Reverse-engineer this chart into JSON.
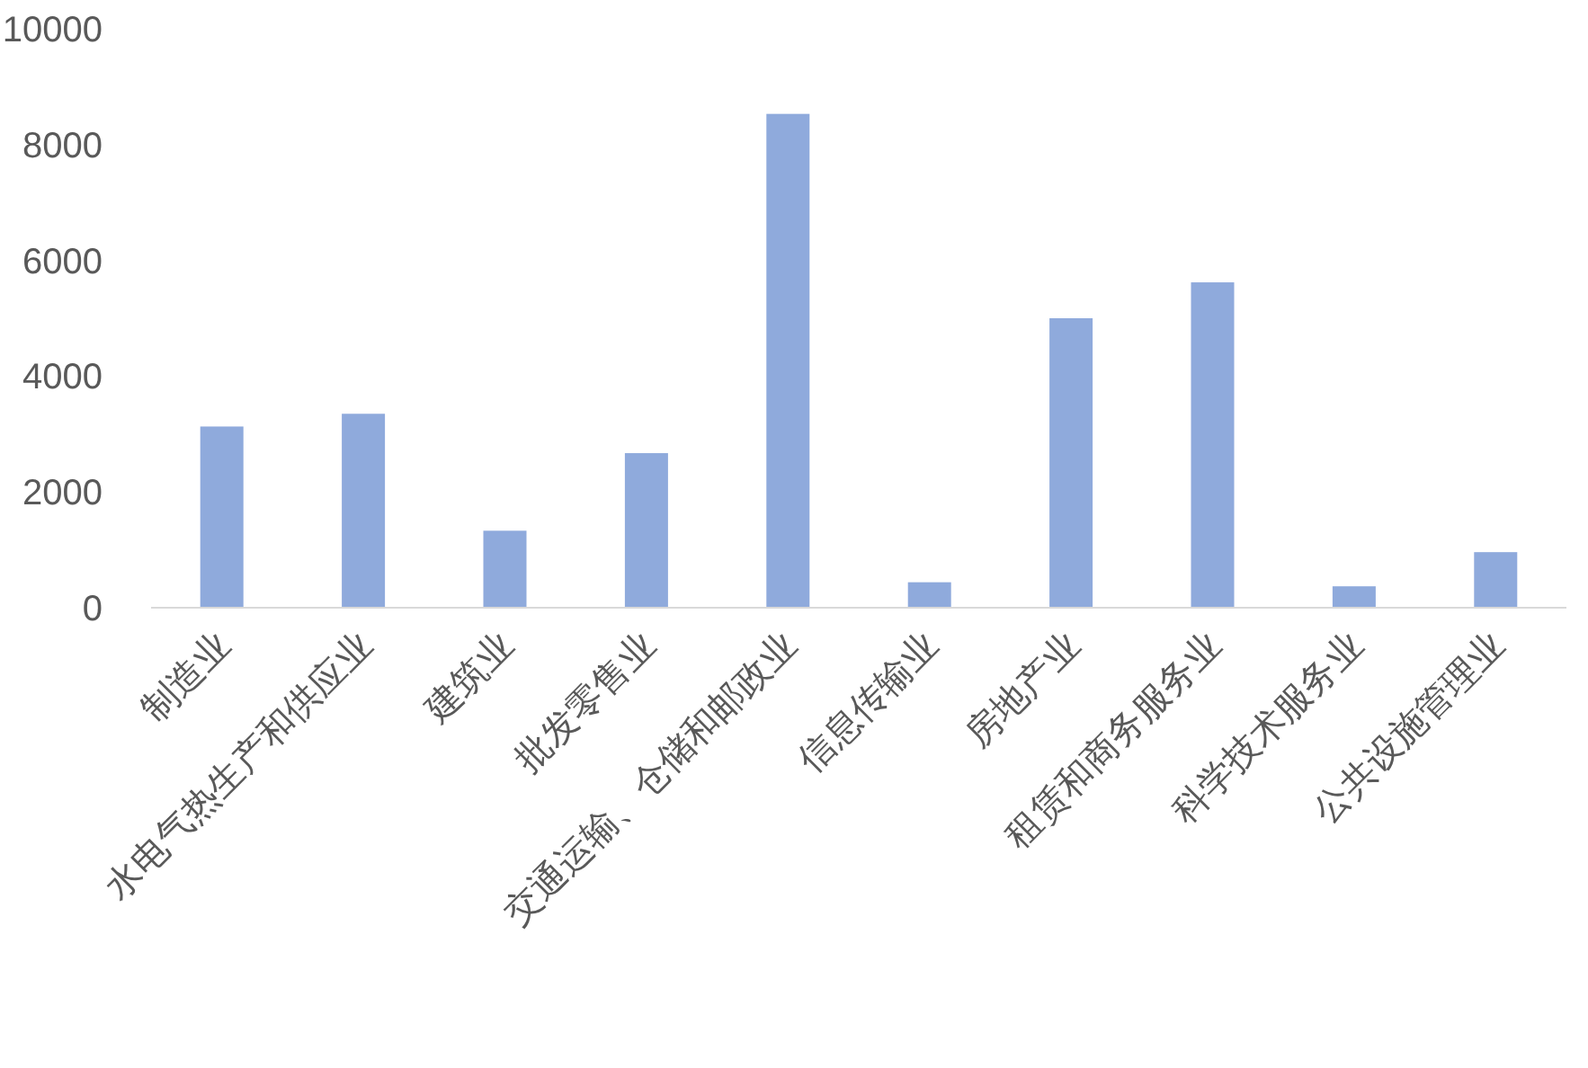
{
  "chart_data": {
    "type": "bar",
    "categories": [
      "制造业",
      "水电气热生产和供应业",
      "建筑业",
      "批发零售业",
      "交通运输、仓储和邮政业",
      "信息传输业",
      "房地产业",
      "租赁和商务服务业",
      "科学技术服务业",
      "公共设施管理业"
    ],
    "values": [
      3130,
      3350,
      1330,
      2670,
      8530,
      440,
      5000,
      5620,
      370,
      960
    ],
    "color": "#8faadc",
    "ylim": [
      0,
      10000
    ],
    "yticks": [
      0,
      2000,
      4000,
      6000,
      8000,
      10000
    ]
  }
}
